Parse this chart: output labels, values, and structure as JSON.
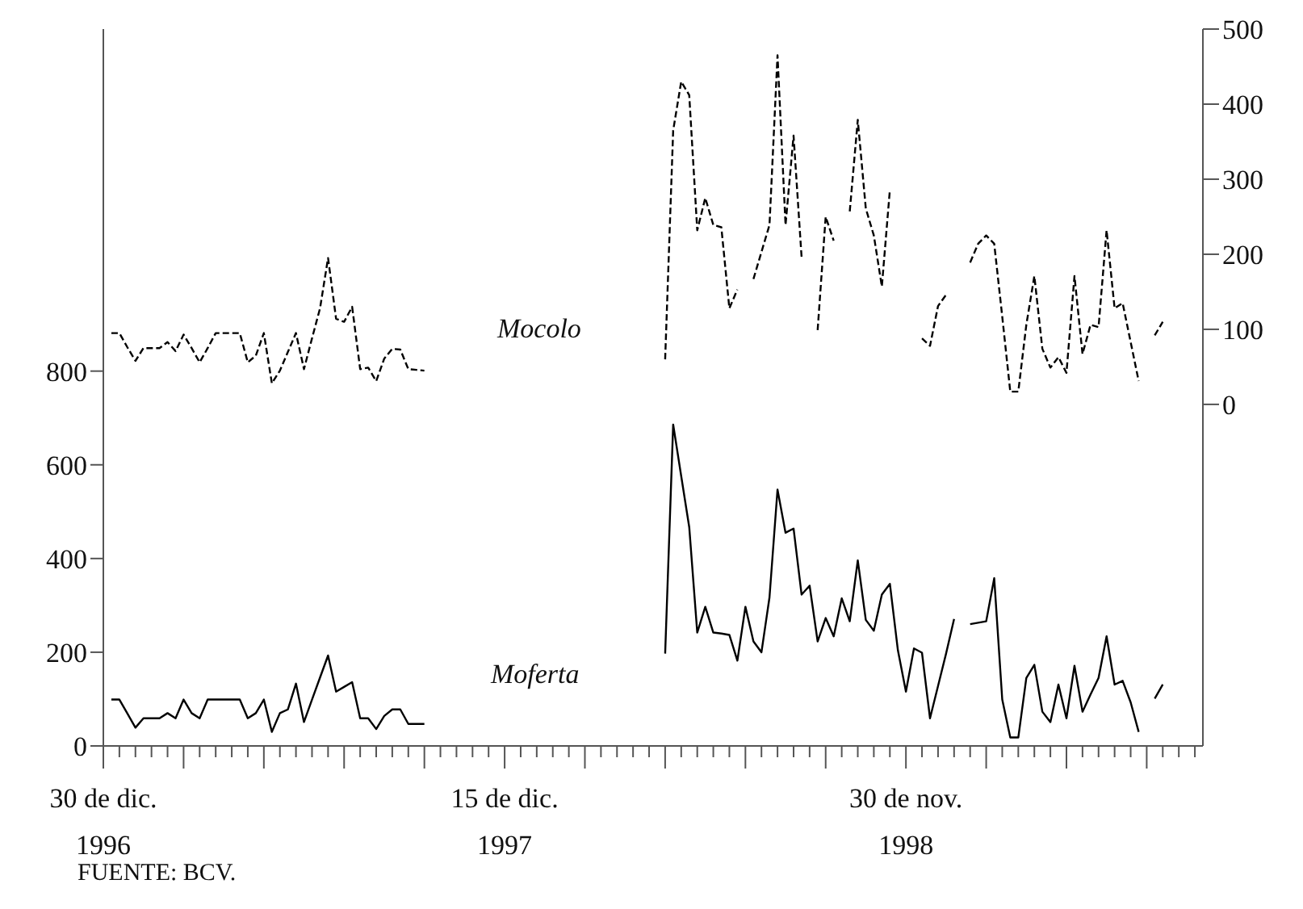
{
  "chart_data": {
    "type": "line",
    "categories": [
      "30 de dic.\n1996",
      null,
      null,
      null,
      null,
      null,
      null,
      null,
      null,
      null,
      null,
      null,
      null,
      null,
      null,
      null,
      null,
      null,
      null,
      null,
      null,
      null,
      null,
      null,
      null,
      null,
      null,
      null,
      null,
      null,
      null,
      null,
      null,
      null,
      null,
      null,
      null,
      null,
      null,
      null,
      null,
      null,
      null,
      null,
      null,
      null,
      null,
      null,
      null,
      null,
      "15 de dic.\n1997",
      null,
      null,
      null,
      null,
      null,
      null,
      null,
      null,
      null,
      null,
      null,
      null,
      null,
      null,
      null,
      null,
      null,
      null,
      null,
      null,
      null,
      null,
      null,
      null,
      null,
      null,
      null,
      null,
      null,
      null,
      null,
      null,
      null,
      null,
      null,
      null,
      null,
      null,
      null,
      null,
      null,
      null,
      null,
      null,
      null,
      null,
      null,
      null,
      null,
      "30 de nov.\n1998",
      null,
      null,
      null,
      null,
      null,
      null,
      null,
      null,
      null,
      null,
      null,
      null,
      null,
      null,
      null,
      null,
      null,
      null,
      null,
      null,
      null,
      null,
      null,
      null,
      null,
      null,
      null,
      null,
      null,
      null,
      null,
      null,
      null,
      null,
      null,
      null,
      null
    ],
    "ylim": [
      0,
      1530
    ],
    "yticks": [
      0,
      200,
      400,
      600,
      800
    ],
    "y2lim": [
      -455,
      500
    ],
    "y2ticks": [
      0,
      100,
      200,
      300,
      400,
      500
    ],
    "marker": "none",
    "annotations": [
      "FUENTE: BCV."
    ],
    "series": [
      {
        "name": "Mocolo",
        "color": "#000000",
        "axis": "y2",
        "line_style": "dashed",
        "values": [
          null,
          95,
          95,
          76,
          58,
          75,
          75,
          75,
          83,
          71,
          93,
          75,
          56,
          75,
          95,
          95,
          95,
          95,
          56,
          65,
          95,
          28,
          45,
          70,
          95,
          47,
          88,
          128,
          195,
          114,
          110,
          130,
          47,
          49,
          31,
          61,
          74,
          73,
          47,
          46,
          45,
          null,
          null,
          null,
          null,
          null,
          null,
          null,
          null,
          null,
          null,
          null,
          null,
          null,
          null,
          null,
          null,
          null,
          null,
          null,
          null,
          null,
          null,
          null,
          null,
          null,
          null,
          null,
          null,
          null,
          60,
          365,
          430,
          412,
          232,
          275,
          239,
          236,
          128,
          153,
          null,
          167,
          203,
          239,
          465,
          239,
          358,
          196,
          null,
          99,
          250,
          218,
          null,
          257,
          379,
          261,
          225,
          157,
          286,
          null,
          null,
          null,
          88,
          78,
          131,
          146,
          null,
          null,
          189,
          214,
          225,
          214,
          117,
          17,
          17,
          106,
          171,
          74,
          49,
          63,
          42,
          171,
          67,
          106,
          103,
          232,
          128,
          135,
          83,
          31,
          null,
          92,
          110,
          null,
          null,
          null,
          null,
          null
        ]
      },
      {
        "name": "Moferta",
        "color": "#000000",
        "line_style": "solid",
        "values": [
          null,
          99,
          99,
          69,
          39,
          59,
          59,
          59,
          70,
          59,
          99,
          70,
          59,
          99,
          99,
          99,
          99,
          99,
          59,
          70,
          99,
          30,
          70,
          78,
          133,
          51,
          99,
          146,
          193,
          116,
          126,
          136,
          59,
          59,
          36,
          64,
          78,
          78,
          47,
          47,
          47,
          null,
          null,
          null,
          null,
          null,
          null,
          null,
          null,
          null,
          null,
          null,
          null,
          null,
          null,
          null,
          null,
          null,
          null,
          null,
          null,
          null,
          null,
          null,
          null,
          null,
          null,
          null,
          null,
          null,
          197,
          686,
          576,
          467,
          242,
          297,
          242,
          240,
          237,
          182,
          297,
          223,
          200,
          317,
          547,
          455,
          464,
          323,
          342,
          223,
          273,
          234,
          315,
          266,
          396,
          269,
          246,
          323,
          346,
          204,
          116,
          208,
          199,
          59,
          128,
          197,
          271,
          null,
          260,
          263,
          266,
          358,
          99,
          18,
          18,
          145,
          173,
          73,
          51,
          131,
          59,
          171,
          73,
          110,
          145,
          234,
          131,
          139,
          93,
          30,
          null,
          101,
          131,
          null,
          null,
          null,
          null,
          null
        ]
      }
    ]
  }
}
